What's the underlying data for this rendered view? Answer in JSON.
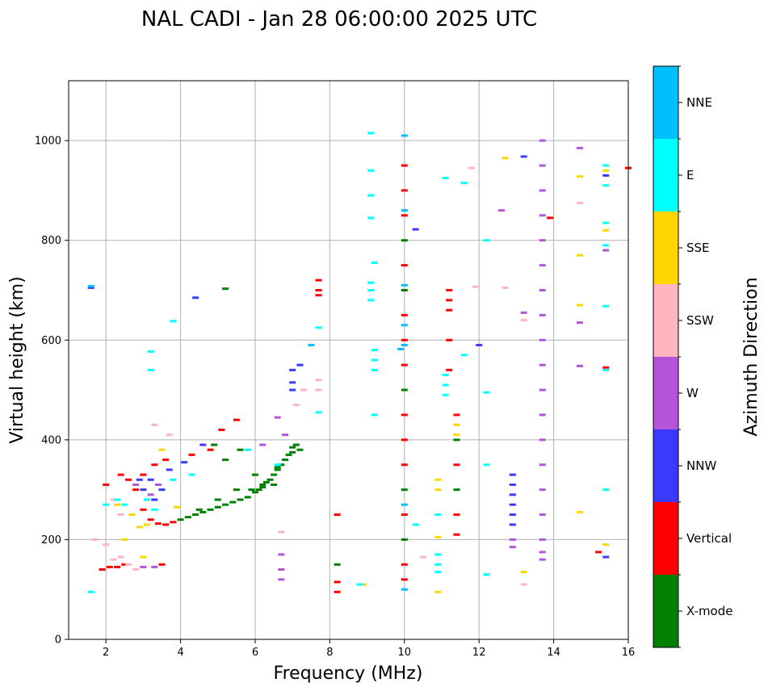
{
  "chart_data": {
    "type": "scatter",
    "title": "NAL CADI - Jan 28 06:00:00 2025 UTC",
    "xlabel": "Frequency (MHz)",
    "ylabel": "Virtual height (km)",
    "xlim": [
      1,
      16
    ],
    "ylim": [
      0,
      1120
    ],
    "xticks": [
      2,
      4,
      6,
      8,
      10,
      12,
      14,
      16
    ],
    "yticks": [
      0,
      200,
      400,
      600,
      800,
      1000
    ],
    "grid": true,
    "colorbar": {
      "label": "Azimuth Direction",
      "categories": [
        "X-mode",
        "Vertical",
        "NNW",
        "W",
        "SSW",
        "SSE",
        "E",
        "NNE"
      ],
      "colors": [
        "#008000",
        "#ff0000",
        "#3a3aff",
        "#b455d8",
        "#ffb6c1",
        "#ffd700",
        "#00ffff",
        "#00bfff"
      ]
    },
    "series": [
      {
        "name": "X-mode",
        "points": [
          [
            4.0,
            240
          ],
          [
            4.2,
            245
          ],
          [
            4.4,
            250
          ],
          [
            4.6,
            255
          ],
          [
            4.8,
            260
          ],
          [
            5.0,
            265
          ],
          [
            5.2,
            270
          ],
          [
            5.4,
            275
          ],
          [
            5.6,
            280
          ],
          [
            5.8,
            285
          ],
          [
            6.0,
            295
          ],
          [
            6.1,
            300
          ],
          [
            6.2,
            310
          ],
          [
            6.3,
            315
          ],
          [
            6.4,
            320
          ],
          [
            6.5,
            330
          ],
          [
            6.6,
            340
          ],
          [
            6.7,
            350
          ],
          [
            6.8,
            360
          ],
          [
            6.9,
            370
          ],
          [
            7.0,
            375
          ],
          [
            7.0,
            385
          ],
          [
            7.1,
            390
          ],
          [
            5.9,
            300
          ],
          [
            6.2,
            305
          ],
          [
            6.5,
            310
          ],
          [
            5.0,
            280
          ],
          [
            4.5,
            260
          ],
          [
            5.5,
            300
          ],
          [
            6.0,
            330
          ],
          [
            6.6,
            345
          ],
          [
            7.2,
            380
          ],
          [
            5.2,
            360
          ],
          [
            5.6,
            380
          ],
          [
            4.9,
            390
          ],
          [
            10.0,
            800
          ],
          [
            10.0,
            700
          ],
          [
            10.0,
            500
          ],
          [
            10.0,
            300
          ],
          [
            10.0,
            200
          ],
          [
            11.4,
            300
          ],
          [
            11.4,
            400
          ],
          [
            8.2,
            150
          ],
          [
            5.2,
            703
          ]
        ]
      },
      {
        "name": "Vertical",
        "points": [
          [
            3.6,
            230
          ],
          [
            3.8,
            235
          ],
          [
            3.4,
            232
          ],
          [
            3.2,
            240
          ],
          [
            3.0,
            260
          ],
          [
            2.8,
            300
          ],
          [
            2.6,
            320
          ],
          [
            2.4,
            330
          ],
          [
            2.0,
            310
          ],
          [
            1.9,
            140
          ],
          [
            2.1,
            145
          ],
          [
            2.3,
            145
          ],
          [
            2.5,
            150
          ],
          [
            3.6,
            360
          ],
          [
            3.3,
            350
          ],
          [
            3.0,
            330
          ],
          [
            4.3,
            370
          ],
          [
            4.8,
            380
          ],
          [
            5.1,
            420
          ],
          [
            5.5,
            440
          ],
          [
            3.5,
            150
          ],
          [
            7.7,
            700
          ],
          [
            7.7,
            690
          ],
          [
            7.7,
            720
          ],
          [
            10.0,
            950
          ],
          [
            10.0,
            900
          ],
          [
            10.0,
            850
          ],
          [
            10.0,
            750
          ],
          [
            10.0,
            650
          ],
          [
            10.0,
            600
          ],
          [
            10.0,
            550
          ],
          [
            10.0,
            450
          ],
          [
            10.0,
            400
          ],
          [
            10.0,
            350
          ],
          [
            10.0,
            250
          ],
          [
            10.0,
            150
          ],
          [
            10.0,
            120
          ],
          [
            11.2,
            700
          ],
          [
            11.2,
            680
          ],
          [
            11.2,
            660
          ],
          [
            11.2,
            600
          ],
          [
            11.2,
            540
          ],
          [
            11.4,
            450
          ],
          [
            11.4,
            350
          ],
          [
            11.4,
            250
          ],
          [
            11.4,
            210
          ],
          [
            8.2,
            250
          ],
          [
            8.2,
            95
          ],
          [
            8.2,
            115
          ],
          [
            15.2,
            175
          ],
          [
            15.4,
            545
          ],
          [
            16.0,
            945
          ],
          [
            13.9,
            845
          ]
        ]
      },
      {
        "name": "NNW",
        "points": [
          [
            2.9,
            320
          ],
          [
            3.2,
            320
          ],
          [
            3.0,
            300
          ],
          [
            3.7,
            340
          ],
          [
            4.1,
            355
          ],
          [
            4.6,
            390
          ],
          [
            3.3,
            280
          ],
          [
            3.5,
            300
          ],
          [
            7.0,
            540
          ],
          [
            7.2,
            550
          ],
          [
            7.0,
            515
          ],
          [
            7.0,
            500
          ],
          [
            12.9,
            330
          ],
          [
            12.9,
            310
          ],
          [
            12.9,
            290
          ],
          [
            12.9,
            270
          ],
          [
            12.9,
            250
          ],
          [
            12.9,
            230
          ],
          [
            10.3,
            822
          ],
          [
            15.4,
            165
          ],
          [
            15.4,
            930
          ],
          [
            13.2,
            968
          ],
          [
            12.0,
            590
          ],
          [
            4.4,
            685
          ],
          [
            1.6,
            705
          ]
        ]
      },
      {
        "name": "W",
        "points": [
          [
            2.8,
            310
          ],
          [
            3.2,
            290
          ],
          [
            3.4,
            310
          ],
          [
            3.3,
            145
          ],
          [
            3.0,
            145
          ],
          [
            6.6,
            445
          ],
          [
            6.8,
            410
          ],
          [
            6.2,
            390
          ],
          [
            6.7,
            120
          ],
          [
            6.7,
            140
          ],
          [
            6.7,
            170
          ],
          [
            13.7,
            200
          ],
          [
            13.7,
            250
          ],
          [
            13.7,
            300
          ],
          [
            13.7,
            350
          ],
          [
            13.7,
            400
          ],
          [
            13.7,
            450
          ],
          [
            13.7,
            500
          ],
          [
            13.7,
            550
          ],
          [
            13.7,
            600
          ],
          [
            13.7,
            650
          ],
          [
            13.7,
            700
          ],
          [
            13.7,
            750
          ],
          [
            13.7,
            800
          ],
          [
            13.7,
            850
          ],
          [
            13.7,
            900
          ],
          [
            13.7,
            950
          ],
          [
            13.7,
            1000
          ],
          [
            13.7,
            160
          ],
          [
            13.7,
            175
          ],
          [
            12.9,
            200
          ],
          [
            12.9,
            185
          ],
          [
            14.7,
            635
          ],
          [
            14.7,
            548
          ],
          [
            14.7,
            985
          ],
          [
            12.6,
            860
          ],
          [
            15.4,
            780
          ],
          [
            13.2,
            655
          ]
        ]
      },
      {
        "name": "SSW",
        "points": [
          [
            2.2,
            160
          ],
          [
            2.4,
            165
          ],
          [
            2.6,
            150
          ],
          [
            2.8,
            140
          ],
          [
            2.0,
            190
          ],
          [
            2.2,
            280
          ],
          [
            2.4,
            250
          ],
          [
            3.3,
            430
          ],
          [
            7.1,
            470
          ],
          [
            7.3,
            500
          ],
          [
            7.7,
            520
          ],
          [
            7.7,
            500
          ],
          [
            6.7,
            215
          ],
          [
            11.4,
            430
          ],
          [
            13.2,
            640
          ],
          [
            14.7,
            875
          ],
          [
            12.7,
            705
          ],
          [
            11.9,
            707
          ],
          [
            11.8,
            945
          ],
          [
            10.5,
            165
          ],
          [
            13.2,
            110
          ],
          [
            1.7,
            200
          ],
          [
            3.7,
            410
          ]
        ]
      },
      {
        "name": "SSE",
        "points": [
          [
            2.3,
            270
          ],
          [
            2.5,
            200
          ],
          [
            2.9,
            225
          ],
          [
            3.1,
            230
          ],
          [
            2.7,
            250
          ],
          [
            3.9,
            265
          ],
          [
            3.5,
            380
          ],
          [
            10.9,
            320
          ],
          [
            10.9,
            300
          ],
          [
            10.9,
            205
          ],
          [
            10.9,
            95
          ],
          [
            11.4,
            410
          ],
          [
            11.4,
            430
          ],
          [
            13.2,
            135
          ],
          [
            14.7,
            255
          ],
          [
            14.7,
            670
          ],
          [
            14.7,
            770
          ],
          [
            14.7,
            928
          ],
          [
            12.7,
            965
          ],
          [
            15.4,
            820
          ],
          [
            15.4,
            940
          ],
          [
            15.4,
            190
          ],
          [
            8.9,
            110
          ],
          [
            3.0,
            165
          ]
        ]
      },
      {
        "name": "E",
        "points": [
          [
            2.0,
            270
          ],
          [
            2.5,
            270
          ],
          [
            2.3,
            280
          ],
          [
            3.1,
            280
          ],
          [
            3.3,
            260
          ],
          [
            3.8,
            320
          ],
          [
            4.3,
            330
          ],
          [
            5.8,
            380
          ],
          [
            6.6,
            350
          ],
          [
            9.1,
            1015
          ],
          [
            9.1,
            940
          ],
          [
            9.1,
            890
          ],
          [
            9.1,
            845
          ],
          [
            9.2,
            755
          ],
          [
            9.1,
            715
          ],
          [
            9.1,
            700
          ],
          [
            9.1,
            680
          ],
          [
            9.2,
            580
          ],
          [
            9.2,
            560
          ],
          [
            9.2,
            540
          ],
          [
            9.2,
            450
          ],
          [
            10.9,
            250
          ],
          [
            10.9,
            170
          ],
          [
            10.9,
            150
          ],
          [
            10.9,
            135
          ],
          [
            10.3,
            230
          ],
          [
            11.1,
            530
          ],
          [
            11.1,
            510
          ],
          [
            11.1,
            490
          ],
          [
            12.2,
            800
          ],
          [
            12.2,
            495
          ],
          [
            12.2,
            350
          ],
          [
            12.2,
            130
          ],
          [
            15.4,
            300
          ],
          [
            15.4,
            540
          ],
          [
            15.4,
            668
          ],
          [
            15.4,
            790
          ],
          [
            15.4,
            835
          ],
          [
            15.4,
            910
          ],
          [
            15.4,
            950
          ],
          [
            11.6,
            915
          ],
          [
            11.1,
            925
          ],
          [
            11.6,
            570
          ],
          [
            7.7,
            625
          ],
          [
            7.7,
            455
          ],
          [
            8.8,
            110
          ],
          [
            1.6,
            95
          ],
          [
            3.2,
            577
          ],
          [
            3.2,
            540
          ],
          [
            3.8,
            638
          ]
        ]
      },
      {
        "name": "NNE",
        "points": [
          [
            10.0,
            1010
          ],
          [
            10.0,
            860
          ],
          [
            10.0,
            710
          ],
          [
            10.0,
            630
          ],
          [
            10.0,
            590
          ],
          [
            10.0,
            270
          ],
          [
            10.0,
            100
          ],
          [
            9.9,
            582
          ],
          [
            7.5,
            590
          ],
          [
            1.6,
            708
          ]
        ]
      }
    ]
  }
}
